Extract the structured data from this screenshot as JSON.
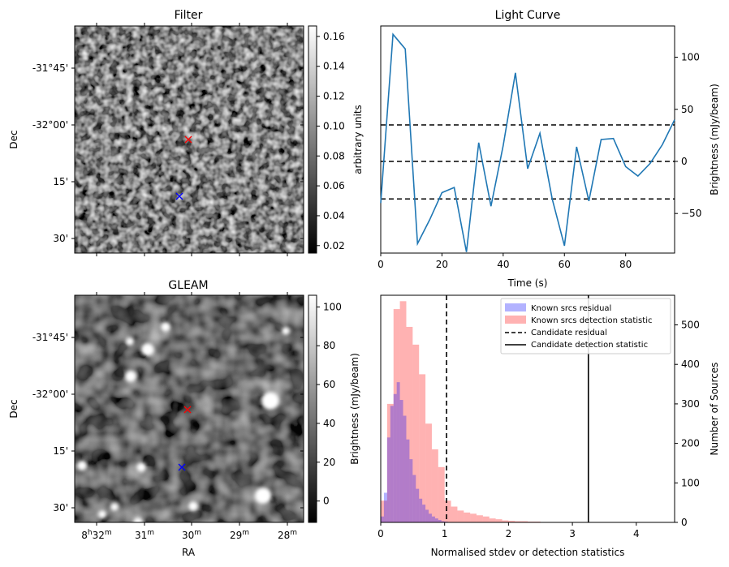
{
  "chart_data": [
    {
      "type": "heatmap",
      "title": "Filter",
      "xlabel": "",
      "ylabel": "Dec",
      "y_ticks": [
        "-31°45'",
        "-32°00'",
        "15'",
        "30'"
      ],
      "colorbar": {
        "label": "arbitrary units",
        "ticks": [
          "0.02",
          "0.04",
          "0.06",
          "0.08",
          "0.10",
          "0.12",
          "0.14",
          "0.16"
        ],
        "tick_values": [
          0.02,
          0.04,
          0.06,
          0.08,
          0.1,
          0.12,
          0.14,
          0.16
        ],
        "range": [
          0.015,
          0.167
        ]
      },
      "markers": [
        {
          "color": "#ff0000"
        },
        {
          "color": "#0000ff"
        }
      ]
    },
    {
      "type": "line",
      "title": "Light Curve",
      "xlabel": "Time (s)",
      "ylabel": "Brightness (mJy/beam)",
      "xlim": [
        0,
        96
      ],
      "ylim": [
        -88,
        130
      ],
      "x_ticks": [
        0,
        20,
        40,
        60,
        80
      ],
      "y_ticks": [
        -50,
        0,
        50,
        100
      ],
      "series": [
        {
          "color": "#1f77b4",
          "x": [
            0,
            4,
            8,
            12,
            16,
            20,
            24,
            28,
            32,
            36,
            40,
            44,
            48,
            52,
            56,
            60,
            64,
            68,
            72,
            76,
            80,
            84,
            88,
            92,
            96
          ],
          "y": [
            -40,
            122,
            108,
            -79,
            -56,
            -30,
            -25,
            -87,
            18,
            -43,
            15,
            85,
            -7,
            27,
            -36,
            -81,
            14,
            -38,
            21,
            22,
            -5,
            -14,
            -2,
            16,
            40
          ]
        }
      ],
      "hlines": [
        {
          "y": 35,
          "style": "dashed"
        },
        {
          "y": 0,
          "style": "dashed"
        },
        {
          "y": -36,
          "style": "dashed"
        }
      ]
    },
    {
      "type": "heatmap",
      "title": "GLEAM",
      "xlabel": "RA",
      "ylabel": "Dec",
      "x_ticks": [
        "8h32m",
        "31m",
        "30m",
        "29m",
        "28m"
      ],
      "x_tick_parts": [
        {
          "h": "8",
          "hs": "h",
          "m": "32",
          "ms": "m"
        },
        {
          "h": "",
          "hs": "",
          "m": "31",
          "ms": "m"
        },
        {
          "h": "",
          "hs": "",
          "m": "30",
          "ms": "m"
        },
        {
          "h": "",
          "hs": "",
          "m": "29",
          "ms": "m"
        },
        {
          "h": "",
          "hs": "",
          "m": "28",
          "ms": "m"
        }
      ],
      "y_ticks": [
        "-31°45'",
        "-32°00'",
        "15'",
        "30'"
      ],
      "colorbar": {
        "label": "Brightness (mJy/beam)",
        "ticks": [
          "0",
          "20",
          "40",
          "60",
          "80",
          "100"
        ],
        "tick_values": [
          0,
          20,
          40,
          60,
          80,
          100
        ],
        "range": [
          -11,
          106
        ]
      },
      "markers": [
        {
          "color": "#ff0000"
        },
        {
          "color": "#0000ff"
        }
      ]
    },
    {
      "type": "bar",
      "subtype": "histogram",
      "title": "",
      "xlabel": "Normalised stdev or detection statistics",
      "ylabel": "Number of Sources",
      "xlim": [
        0,
        4.6
      ],
      "ylim": [
        0,
        575
      ],
      "x_ticks": [
        0,
        1,
        2,
        3,
        4
      ],
      "y_ticks": [
        0,
        100,
        200,
        300,
        400,
        500
      ],
      "legend_position": "top-right",
      "series": [
        {
          "name": "Known srcs residual",
          "color": "#0000ff",
          "alpha": 0.3,
          "bin_width": 0.05,
          "bin_start": 0.0,
          "values": [
            15,
            75,
            215,
            295,
            325,
            355,
            310,
            270,
            210,
            160,
            120,
            85,
            60,
            45,
            32,
            22,
            15,
            10,
            6,
            3,
            2,
            1
          ]
        },
        {
          "name": "Known srcs detection statistic",
          "color": "#ff0000",
          "alpha": 0.3,
          "bin_width": 0.1,
          "bin_start": 0.0,
          "values": [
            55,
            300,
            540,
            560,
            495,
            450,
            375,
            250,
            185,
            140,
            55,
            40,
            30,
            25,
            22,
            18,
            15,
            10,
            8,
            5,
            4,
            3,
            3,
            2,
            2,
            1,
            1,
            1,
            1,
            1,
            1,
            0,
            1,
            0,
            0,
            1,
            0,
            0,
            0,
            0,
            0,
            0,
            1,
            0,
            0,
            0
          ]
        }
      ],
      "vlines": [
        {
          "name": "Candidate residual",
          "x": 1.03,
          "style": "dashed"
        },
        {
          "name": "Candidate detection statistic",
          "x": 3.25,
          "style": "solid"
        }
      ]
    }
  ]
}
